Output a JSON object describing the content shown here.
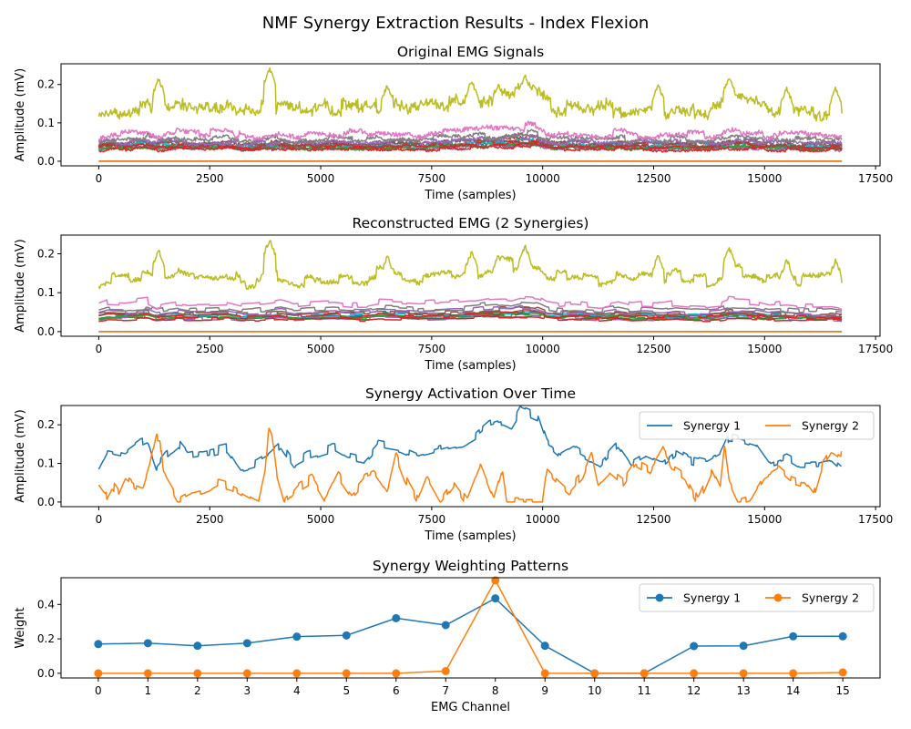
{
  "figure": {
    "suptitle": "NMF Synergy Extraction Results - Index Flexion"
  },
  "colors": {
    "tab10": [
      "#1f77b4",
      "#ff7f0e",
      "#2ca02c",
      "#d62728",
      "#9467bd",
      "#8c564b",
      "#e377c2",
      "#7f7f7f",
      "#bcbd22",
      "#17becf"
    ],
    "axis": "#000000",
    "background": "#ffffff"
  },
  "chart_data": [
    {
      "type": "line",
      "title": "Original EMG Signals",
      "xlabel": "Time (samples)",
      "ylabel": "Amplitude (mV)",
      "xlim": [
        -850,
        17600
      ],
      "ylim": [
        -0.012,
        0.254
      ],
      "xticks": [
        0,
        2500,
        5000,
        7500,
        10000,
        12500,
        15000,
        17500
      ],
      "xtick_labels": [
        "0",
        "2500",
        "5000",
        "7500",
        "10000",
        "12500",
        "15000",
        "17500"
      ],
      "yticks": [
        0.0,
        0.1,
        0.2
      ],
      "ytick_labels": [
        "0.0",
        "0.1",
        "0.2"
      ],
      "n_samples": 16740,
      "channels": 16,
      "legend": false,
      "grid": false,
      "series_profile": {
        "base_level_by_channel": [
          0.035,
          0.0,
          0.033,
          0.028,
          0.03,
          0.04,
          0.065,
          0.052,
          0.125,
          0.038,
          0.0,
          0.0,
          0.032,
          0.036,
          0.045,
          0.042
        ],
        "peaks": [
          {
            "sample": 1350,
            "value": 0.215
          },
          {
            "sample": 3850,
            "value": 0.242
          },
          {
            "sample": 6500,
            "value": 0.198
          },
          {
            "sample": 8400,
            "value": 0.21
          },
          {
            "sample": 9000,
            "value": 0.2
          },
          {
            "sample": 9600,
            "value": 0.225
          },
          {
            "sample": 12600,
            "value": 0.2
          },
          {
            "sample": 14200,
            "value": 0.22
          },
          {
            "sample": 15500,
            "value": 0.19
          },
          {
            "sample": 16600,
            "value": 0.19
          }
        ],
        "flat_zero_channel_value": 0.0
      }
    },
    {
      "type": "line",
      "title": "Reconstructed EMG (2 Synergies)",
      "xlabel": "Time (samples)",
      "ylabel": "Amplitude (mV)",
      "xlim": [
        -850,
        17600
      ],
      "ylim": [
        -0.012,
        0.248
      ],
      "xticks": [
        0,
        2500,
        5000,
        7500,
        10000,
        12500,
        15000,
        17500
      ],
      "xtick_labels": [
        "0",
        "2500",
        "5000",
        "7500",
        "10000",
        "12500",
        "15000",
        "17500"
      ],
      "yticks": [
        0.0,
        0.1,
        0.2
      ],
      "ytick_labels": [
        "0.0",
        "0.1",
        "0.2"
      ],
      "n_samples": 16740,
      "channels": 16,
      "legend": false,
      "grid": false
    },
    {
      "type": "line",
      "title": "Synergy Activation Over Time",
      "xlabel": "Time (samples)",
      "ylabel": "Amplitude (mV)",
      "xlim": [
        -850,
        17600
      ],
      "ylim": [
        -0.012,
        0.25
      ],
      "xticks": [
        0,
        2500,
        5000,
        7500,
        10000,
        12500,
        15000,
        17500
      ],
      "xtick_labels": [
        "0",
        "2500",
        "5000",
        "7500",
        "10000",
        "12500",
        "15000",
        "17500"
      ],
      "yticks": [
        0.0,
        0.1,
        0.2
      ],
      "ytick_labels": [
        "0.0",
        "0.1",
        "0.2"
      ],
      "legend_position": "upper-right",
      "legend": true,
      "grid": false,
      "n_samples": 16740,
      "series": [
        {
          "name": "Synergy 1",
          "color": "#1f77b4",
          "anchors": [
            [
              0,
              0.09
            ],
            [
              200,
              0.135
            ],
            [
              600,
              0.125
            ],
            [
              900,
              0.15
            ],
            [
              1100,
              0.16
            ],
            [
              1300,
              0.09
            ],
            [
              1500,
              0.12
            ],
            [
              1800,
              0.15
            ],
            [
              2000,
              0.12
            ],
            [
              2500,
              0.13
            ],
            [
              2900,
              0.14
            ],
            [
              3200,
              0.09
            ],
            [
              3500,
              0.1
            ],
            [
              3800,
              0.12
            ],
            [
              4100,
              0.15
            ],
            [
              4400,
              0.1
            ],
            [
              4700,
              0.12
            ],
            [
              5000,
              0.13
            ],
            [
              5300,
              0.14
            ],
            [
              5600,
              0.12
            ],
            [
              6000,
              0.11
            ],
            [
              6300,
              0.15
            ],
            [
              6800,
              0.14
            ],
            [
              7200,
              0.12
            ],
            [
              7500,
              0.13
            ],
            [
              7800,
              0.14
            ],
            [
              8200,
              0.15
            ],
            [
              8500,
              0.17
            ],
            [
              8800,
              0.2
            ],
            [
              9100,
              0.21
            ],
            [
              9300,
              0.2
            ],
            [
              9500,
              0.24
            ],
            [
              9700,
              0.23
            ],
            [
              9900,
              0.22
            ],
            [
              10100,
              0.15
            ],
            [
              10400,
              0.12
            ],
            [
              10700,
              0.14
            ],
            [
              11000,
              0.12
            ],
            [
              11300,
              0.1
            ],
            [
              11700,
              0.15
            ],
            [
              12000,
              0.1
            ],
            [
              12300,
              0.12
            ],
            [
              12700,
              0.1
            ],
            [
              13000,
              0.13
            ],
            [
              13300,
              0.11
            ],
            [
              13700,
              0.1
            ],
            [
              14000,
              0.12
            ],
            [
              14200,
              0.17
            ],
            [
              14500,
              0.16
            ],
            [
              14800,
              0.15
            ],
            [
              15100,
              0.1
            ],
            [
              15500,
              0.12
            ],
            [
              15800,
              0.1
            ],
            [
              16200,
              0.1
            ],
            [
              16500,
              0.11
            ],
            [
              16740,
              0.085
            ]
          ]
        },
        {
          "name": "Synergy 2",
          "color": "#ff7f0e",
          "anchors": [
            [
              0,
              0.035
            ],
            [
              150,
              0.01
            ],
            [
              300,
              0.045
            ],
            [
              450,
              0.02
            ],
            [
              600,
              0.06
            ],
            [
              800,
              0.04
            ],
            [
              1000,
              0.03
            ],
            [
              1150,
              0.09
            ],
            [
              1300,
              0.17
            ],
            [
              1380,
              0.17
            ],
            [
              1450,
              0.07
            ],
            [
              1600,
              0.04
            ],
            [
              1800,
              0.0
            ],
            [
              2100,
              0.02
            ],
            [
              2400,
              0.03
            ],
            [
              2700,
              0.05
            ],
            [
              3000,
              0.04
            ],
            [
              3300,
              0.02
            ],
            [
              3600,
              0.0
            ],
            [
              3750,
              0.08
            ],
            [
              3820,
              0.19
            ],
            [
              3900,
              0.17
            ],
            [
              4000,
              0.08
            ],
            [
              4200,
              0.0
            ],
            [
              4500,
              0.04
            ],
            [
              4800,
              0.06
            ],
            [
              5100,
              0.0
            ],
            [
              5400,
              0.07
            ],
            [
              5700,
              0.02
            ],
            [
              6000,
              0.06
            ],
            [
              6200,
              0.07
            ],
            [
              6500,
              0.02
            ],
            [
              6700,
              0.12
            ],
            [
              6900,
              0.06
            ],
            [
              7200,
              0.0
            ],
            [
              7400,
              0.06
            ],
            [
              7700,
              0.0
            ],
            [
              8000,
              0.05
            ],
            [
              8300,
              0.0
            ],
            [
              8600,
              0.09
            ],
            [
              8900,
              0.0
            ],
            [
              9100,
              0.085
            ],
            [
              9200,
              0.0
            ],
            [
              9600,
              0.0
            ],
            [
              10000,
              0.0
            ],
            [
              10100,
              0.085
            ],
            [
              10300,
              0.06
            ],
            [
              10600,
              0.03
            ],
            [
              10900,
              0.07
            ],
            [
              11100,
              0.13
            ],
            [
              11250,
              0.05
            ],
            [
              11500,
              0.08
            ],
            [
              11800,
              0.05
            ],
            [
              12100,
              0.1
            ],
            [
              12400,
              0.08
            ],
            [
              12700,
              0.14
            ],
            [
              12900,
              0.09
            ],
            [
              13200,
              0.07
            ],
            [
              13500,
              0.0
            ],
            [
              13800,
              0.08
            ],
            [
              14000,
              0.03
            ],
            [
              14100,
              0.14
            ],
            [
              14200,
              0.05
            ],
            [
              14400,
              0.0
            ],
            [
              14700,
              0.01
            ],
            [
              15000,
              0.07
            ],
            [
              15300,
              0.09
            ],
            [
              15600,
              0.06
            ],
            [
              15900,
              0.05
            ],
            [
              16100,
              0.02
            ],
            [
              16300,
              0.1
            ],
            [
              16500,
              0.14
            ],
            [
              16740,
              0.12
            ]
          ]
        }
      ]
    },
    {
      "type": "line",
      "title": "Synergy Weighting Patterns",
      "xlabel": "EMG Channel",
      "ylabel": "Weight",
      "xlim": [
        -0.75,
        15.75
      ],
      "ylim": [
        -0.027,
        0.555
      ],
      "xticks": [
        0,
        1,
        2,
        3,
        4,
        5,
        6,
        7,
        8,
        9,
        10,
        11,
        12,
        13,
        14,
        15
      ],
      "xtick_labels": [
        "0",
        "1",
        "2",
        "3",
        "4",
        "5",
        "6",
        "7",
        "8",
        "9",
        "10",
        "11",
        "12",
        "13",
        "14",
        "15"
      ],
      "yticks": [
        0.0,
        0.2,
        0.4
      ],
      "ytick_labels": [
        "0.0",
        "0.2",
        "0.4"
      ],
      "legend_position": "upper-right",
      "legend": true,
      "grid": false,
      "x": [
        0,
        1,
        2,
        3,
        4,
        5,
        6,
        7,
        8,
        9,
        10,
        11,
        12,
        13,
        14,
        15
      ],
      "series": [
        {
          "name": "Synergy 1",
          "color": "#1f77b4",
          "marker": "circle",
          "values": [
            0.17,
            0.175,
            0.16,
            0.175,
            0.213,
            0.22,
            0.32,
            0.28,
            0.435,
            0.16,
            0.0,
            0.0,
            0.158,
            0.16,
            0.215,
            0.215
          ]
        },
        {
          "name": "Synergy 2",
          "color": "#ff7f0e",
          "marker": "circle",
          "values": [
            0.0,
            0.0,
            0.0,
            0.0,
            0.0,
            0.0,
            0.0,
            0.013,
            0.54,
            0.0,
            0.0,
            0.0,
            0.0,
            0.0,
            0.0,
            0.005
          ]
        }
      ]
    }
  ]
}
